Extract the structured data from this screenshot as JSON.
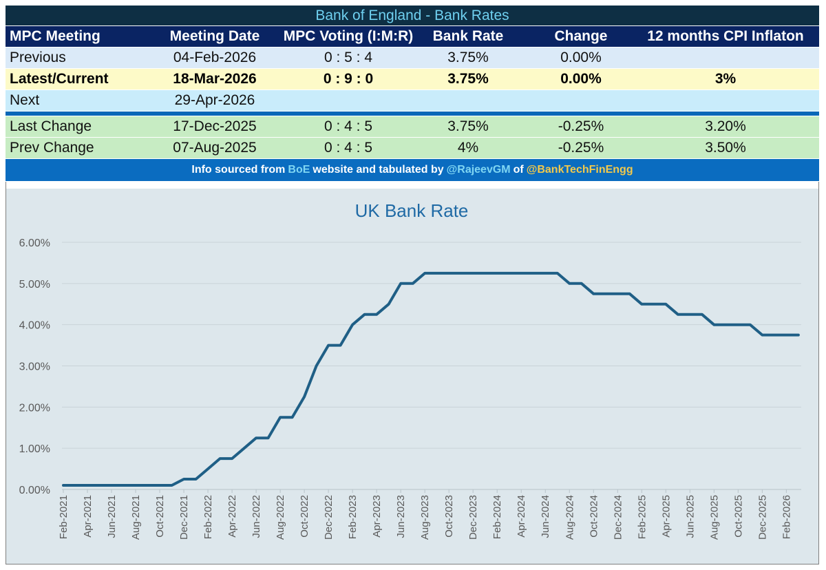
{
  "table": {
    "title": "Bank of England - Bank Rates",
    "headers": [
      "MPC Meeting",
      "Meeting Date",
      "MPC Voting (I:M:R)",
      "Bank Rate",
      "Change",
      "12 months CPI Inflaton"
    ],
    "rows": [
      {
        "meeting": "Previous",
        "date": "04-Feb-2026",
        "voting": "0 : 5 : 4",
        "rate": "3.75%",
        "change": "0.00%",
        "cpi": ""
      },
      {
        "meeting": "Latest/Current",
        "date": "18-Mar-2026",
        "voting": "0 : 9 : 0",
        "rate": "3.75%",
        "change": "0.00%",
        "cpi": "3%"
      },
      {
        "meeting": "Next",
        "date": "29-Apr-2026",
        "voting": "",
        "rate": "",
        "change": "",
        "cpi": ""
      },
      {
        "meeting": "Last Change",
        "date": "17-Dec-2025",
        "voting": "0 : 4 : 5",
        "rate": "3.75%",
        "change": "-0.25%",
        "cpi": "3.20%"
      },
      {
        "meeting": "Prev Change",
        "date": "07-Aug-2025",
        "voting": "0 : 4 : 5",
        "rate": "4%",
        "change": "-0.25%",
        "cpi": "3.50%"
      }
    ],
    "info": {
      "part1": "Info sourced from",
      "boe": "BoE",
      "part2": "website and tabulated by",
      "author": "@RajeevGM",
      "part3": "of",
      "org": "@BankTechFinEngg"
    }
  },
  "colors": {
    "line": "#1f5f86",
    "title": "#1f6aa5",
    "grid": "#c9d3d8",
    "axis_text": "#595959"
  },
  "chart_data": {
    "type": "line",
    "title": "UK Bank Rate",
    "xlabel": "",
    "ylabel": "",
    "ylim": [
      0,
      6
    ],
    "ytick_labels": [
      "0.00%",
      "1.00%",
      "2.00%",
      "3.00%",
      "4.00%",
      "5.00%",
      "6.00%"
    ],
    "xtick_labels": [
      "Feb-2021",
      "Apr-2021",
      "Jun-2021",
      "Aug-2021",
      "Oct-2021",
      "Dec-2021",
      "Feb-2022",
      "Apr-2022",
      "Jun-2022",
      "Aug-2022",
      "Oct-2022",
      "Dec-2022",
      "Feb-2023",
      "Apr-2023",
      "Jun-2023",
      "Aug-2023",
      "Oct-2023",
      "Dec-2023",
      "Feb-2024",
      "Apr-2024",
      "Jun-2024",
      "Aug-2024",
      "Oct-2024",
      "Dec-2024",
      "Feb-2025",
      "Apr-2025",
      "Jun-2025",
      "Aug-2025",
      "Oct-2025",
      "Dec-2025",
      "Feb-2026"
    ],
    "grid": true,
    "series": [
      {
        "x": [
          "Feb-2021",
          "Mar-2021",
          "Apr-2021",
          "May-2021",
          "Jun-2021",
          "Jul-2021",
          "Aug-2021",
          "Sep-2021",
          "Oct-2021",
          "Nov-2021",
          "Dec-2021",
          "Jan-2022",
          "Feb-2022",
          "Mar-2022",
          "Apr-2022",
          "May-2022",
          "Jun-2022",
          "Jul-2022",
          "Aug-2022",
          "Sep-2022",
          "Oct-2022",
          "Nov-2022",
          "Dec-2022",
          "Jan-2023",
          "Feb-2023",
          "Mar-2023",
          "Apr-2023",
          "May-2023",
          "Jun-2023",
          "Jul-2023",
          "Aug-2023",
          "Sep-2023",
          "Oct-2023",
          "Nov-2023",
          "Dec-2023",
          "Jan-2024",
          "Feb-2024",
          "Mar-2024",
          "Apr-2024",
          "May-2024",
          "Jun-2024",
          "Jul-2024",
          "Aug-2024",
          "Sep-2024",
          "Oct-2024",
          "Nov-2024",
          "Dec-2024",
          "Jan-2025",
          "Feb-2025",
          "Mar-2025",
          "Apr-2025",
          "May-2025",
          "Jun-2025",
          "Jul-2025",
          "Aug-2025",
          "Sep-2025",
          "Oct-2025",
          "Nov-2025",
          "Dec-2025",
          "Jan-2026",
          "Feb-2026",
          "Mar-2026"
        ],
        "values": [
          0.1,
          0.1,
          0.1,
          0.1,
          0.1,
          0.1,
          0.1,
          0.1,
          0.1,
          0.1,
          0.25,
          0.25,
          0.5,
          0.75,
          0.75,
          1.0,
          1.25,
          1.25,
          1.75,
          1.75,
          2.25,
          3.0,
          3.5,
          3.5,
          4.0,
          4.25,
          4.25,
          4.5,
          5.0,
          5.0,
          5.25,
          5.25,
          5.25,
          5.25,
          5.25,
          5.25,
          5.25,
          5.25,
          5.25,
          5.25,
          5.25,
          5.25,
          5.0,
          5.0,
          4.75,
          4.75,
          4.75,
          4.75,
          4.5,
          4.5,
          4.5,
          4.25,
          4.25,
          4.25,
          4.0,
          4.0,
          4.0,
          4.0,
          3.75,
          3.75,
          3.75,
          3.75
        ]
      }
    ]
  }
}
